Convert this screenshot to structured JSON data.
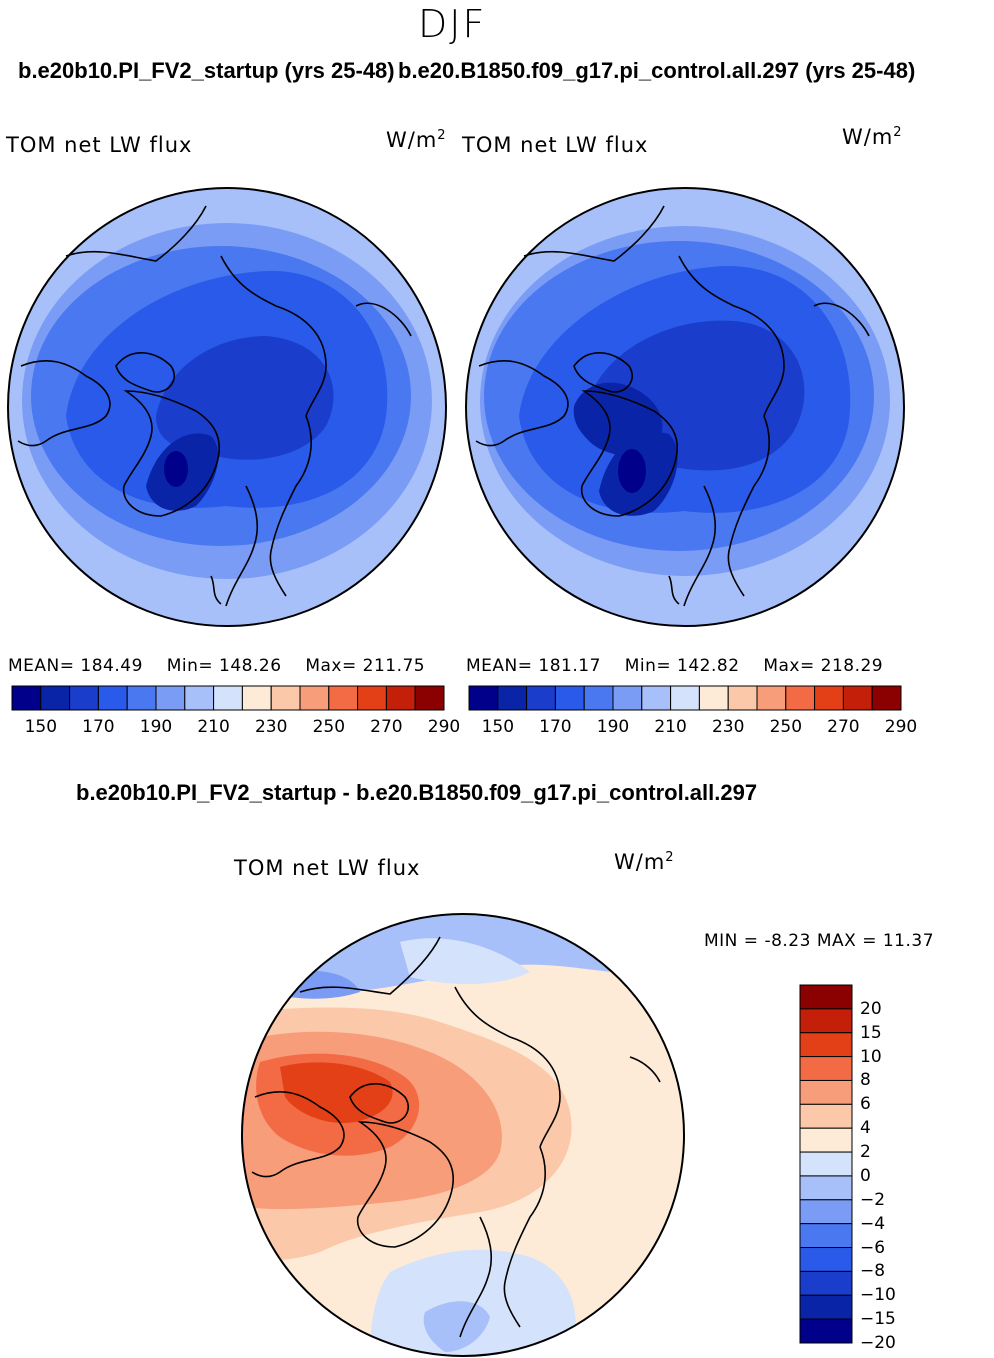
{
  "season": "DJF",
  "panels": [
    {
      "title": "b.e20b10.PI_FV2_startup (yrs 25-48)",
      "variable": "TOM net LW flux",
      "units_base": "W/m",
      "units_exp": "2",
      "mean_label": "MEAN=",
      "mean": "184.49",
      "min_label": "Min=",
      "min": "148.26",
      "max_label": "Max=",
      "max": "211.75"
    },
    {
      "title": "b.e20.B1850.f09_g17.pi_control.all.297 (yrs 25-48)",
      "variable": "TOM net LW flux",
      "units_base": "W/m",
      "units_exp": "2",
      "mean_label": "MEAN=",
      "mean": "181.17",
      "min_label": "Min=",
      "min": "142.82",
      "max_label": "Max=",
      "max": "218.29"
    }
  ],
  "abs_colorbar": {
    "colors": [
      "#00008b",
      "#0a24a8",
      "#1a3dcc",
      "#2a5aea",
      "#4a78f0",
      "#7a9cf5",
      "#a8c0fa",
      "#d4e2fb",
      "#fdebd8",
      "#fbc8a9",
      "#f89d7a",
      "#f26b45",
      "#e34018",
      "#c41f08",
      "#8b0000"
    ],
    "ticks": [
      "150",
      "170",
      "190",
      "210",
      "230",
      "250",
      "270",
      "290"
    ]
  },
  "diff": {
    "title": "b.e20b10.PI_FV2_startup - b.e20.B1850.f09_g17.pi_control.all.297",
    "variable": "TOM net LW flux",
    "units_base": "W/m",
    "units_exp": "2",
    "min_label": "MIN =",
    "min": "-8.23",
    "max_label": "MAX =",
    "max": "11.37",
    "colorbar": {
      "colors": [
        "#00008b",
        "#0a24a8",
        "#1a3dcc",
        "#2a5aea",
        "#4a78f0",
        "#7a9cf5",
        "#a8c0fa",
        "#d4e2fb",
        "#fdebd8",
        "#fbc8a9",
        "#f89d7a",
        "#f26b45",
        "#e34018",
        "#c41f08",
        "#8b0000"
      ],
      "ticks": [
        "20",
        "15",
        "10",
        "8",
        "6",
        "4",
        "2",
        "0",
        "−2",
        "−4",
        "−6",
        "−8",
        "−10",
        "−15",
        "−20"
      ]
    }
  }
}
